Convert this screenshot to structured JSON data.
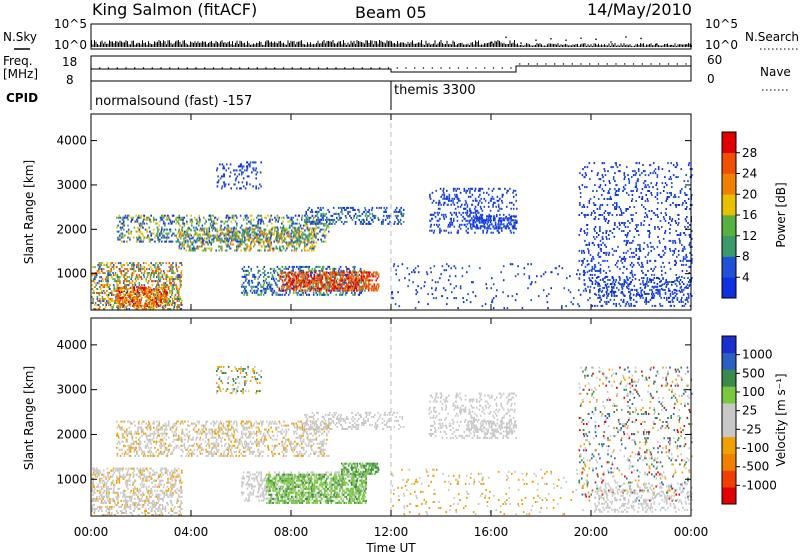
{
  "header": {
    "station": "King Salmon (fitACF)",
    "beam": "Beam 05",
    "date": "14/May/2010"
  },
  "summary_panels": {
    "nsky_label": "N.Sky",
    "nsky_ticks": [
      "10^5",
      "10^0"
    ],
    "nsearch_label": "N.Search",
    "nsearch_ticks": [
      "10^5",
      "10^0"
    ],
    "freq_label_line1": "Freq.",
    "freq_label_line2": "[MHz]",
    "freq_ticks": [
      "18",
      "8"
    ],
    "nave_label": "Nave",
    "nave_ticks": [
      "60",
      "0"
    ],
    "cpid_label": "CPID",
    "cpid_segments": [
      {
        "label": "normalsound (fast) -157",
        "start_hour": 0,
        "end_hour": 12
      },
      {
        "label": "themis 3300",
        "start_hour": 12,
        "end_hour": 24
      }
    ]
  },
  "colors": {
    "power_scale": [
      "#1030e0",
      "#2050d8",
      "#3a9a6a",
      "#58b040",
      "#e8c000",
      "#f08000",
      "#f05000",
      "#e00000"
    ],
    "velocity_scale": [
      "#1a2fd0",
      "#2a60c0",
      "#3a8a4a",
      "#7ac840",
      "#c8c8c8",
      "#c8c8c8",
      "#f0a000",
      "#f08000",
      "#f04000",
      "#e00000"
    ],
    "noon_line": "#b8b8b8"
  },
  "chart_data": [
    {
      "type": "heatmap",
      "panel": "power",
      "ylabel": "Slant Range [km]",
      "ylim": [
        180,
        4600
      ],
      "yticks": [
        1000,
        2000,
        3000,
        4000
      ],
      "xlim": [
        0,
        24
      ],
      "colorbar_label": "Power [dB]",
      "colorbar_ticks": [
        "4",
        "8",
        "12",
        "16",
        "20",
        "24",
        "28"
      ],
      "scatter_regions": [
        {
          "t0": 0.0,
          "t1": 3.6,
          "r0": 180,
          "r1": 1250,
          "density": 0.65,
          "levels": [
            1,
            2,
            3,
            4,
            5,
            6
          ]
        },
        {
          "t0": 1.0,
          "t1": 3.0,
          "r0": 250,
          "r1": 700,
          "density": 0.85,
          "levels": [
            4,
            5,
            6,
            7
          ]
        },
        {
          "t0": 1.0,
          "t1": 9.5,
          "r0": 1700,
          "r1": 2300,
          "density": 0.5,
          "levels": [
            0,
            1,
            2,
            3,
            4
          ]
        },
        {
          "t0": 3.5,
          "t1": 9.0,
          "r0": 1500,
          "r1": 2000,
          "density": 0.6,
          "levels": [
            1,
            2,
            3,
            4,
            5
          ]
        },
        {
          "t0": 6.0,
          "t1": 11.0,
          "r0": 500,
          "r1": 1150,
          "density": 0.55,
          "levels": [
            0,
            1,
            2,
            3
          ]
        },
        {
          "t0": 7.5,
          "t1": 11.5,
          "r0": 600,
          "r1": 1050,
          "density": 0.9,
          "levels": [
            5,
            6,
            7
          ]
        },
        {
          "t0": 5.0,
          "t1": 6.8,
          "r0": 2900,
          "r1": 3500,
          "density": 0.3,
          "levels": [
            0,
            1
          ]
        },
        {
          "t0": 8.5,
          "t1": 12.5,
          "r0": 2100,
          "r1": 2500,
          "density": 0.45,
          "levels": [
            0,
            1,
            2
          ]
        },
        {
          "t0": 13.5,
          "t1": 17.0,
          "r0": 1900,
          "r1": 2900,
          "density": 0.3,
          "levels": [
            0,
            1
          ]
        },
        {
          "t0": 15.0,
          "t1": 17.0,
          "r0": 2000,
          "r1": 2300,
          "density": 0.6,
          "levels": [
            0,
            1
          ]
        },
        {
          "t0": 19.5,
          "t1": 24.0,
          "r0": 500,
          "r1": 3500,
          "density": 0.18,
          "levels": [
            0,
            1
          ]
        },
        {
          "t0": 20.0,
          "t1": 24.0,
          "r0": 250,
          "r1": 900,
          "density": 0.35,
          "levels": [
            0,
            1
          ]
        },
        {
          "t0": 12.0,
          "t1": 20.0,
          "r0": 200,
          "r1": 1200,
          "density": 0.07,
          "levels": [
            0,
            1
          ]
        }
      ]
    },
    {
      "type": "heatmap",
      "panel": "velocity",
      "ylabel": "Slant Range [km]",
      "ylim": [
        180,
        4600
      ],
      "yticks": [
        1000,
        2000,
        3000,
        4000
      ],
      "xlim": [
        0,
        24
      ],
      "xticks": [
        "00:00",
        "04:00",
        "08:00",
        "12:00",
        "16:00",
        "20:00",
        "00:00"
      ],
      "xlabel": "Time UT",
      "colorbar_label": "Velocity [m s⁻¹]",
      "colorbar_ticks": [
        "1000",
        "500",
        "100",
        "25",
        "-25",
        "-100",
        "-500",
        "-1000"
      ],
      "scatter_regions": [
        {
          "t0": 0.0,
          "t1": 3.6,
          "r0": 180,
          "r1": 1250,
          "density": 0.6,
          "levels": [
            4,
            4,
            4,
            5,
            3
          ]
        },
        {
          "t0": 1.0,
          "t1": 9.5,
          "r0": 1500,
          "r1": 2300,
          "density": 0.5,
          "levels": [
            4,
            5,
            4,
            3
          ]
        },
        {
          "t0": 6.0,
          "t1": 11.0,
          "r0": 500,
          "r1": 1150,
          "density": 0.55,
          "levels": [
            4,
            5,
            4
          ]
        },
        {
          "t0": 7.0,
          "t1": 11.0,
          "r0": 450,
          "r1": 1100,
          "density": 0.85,
          "levels": [
            6,
            6,
            7,
            6
          ]
        },
        {
          "t0": 10.0,
          "t1": 11.5,
          "r0": 1100,
          "r1": 1350,
          "density": 0.8,
          "levels": [
            6,
            7
          ]
        },
        {
          "t0": 8.5,
          "t1": 12.5,
          "r0": 2100,
          "r1": 2500,
          "density": 0.45,
          "levels": [
            4,
            5
          ]
        },
        {
          "t0": 5.0,
          "t1": 6.8,
          "r0": 2900,
          "r1": 3500,
          "density": 0.25,
          "levels": [
            4,
            3,
            7
          ]
        },
        {
          "t0": 13.5,
          "t1": 17.0,
          "r0": 1900,
          "r1": 2900,
          "density": 0.3,
          "levels": [
            4,
            5
          ]
        },
        {
          "t0": 15.0,
          "t1": 17.0,
          "r0": 2000,
          "r1": 2300,
          "density": 0.6,
          "levels": [
            4
          ]
        },
        {
          "t0": 19.5,
          "t1": 24.0,
          "r0": 500,
          "r1": 3500,
          "density": 0.15,
          "levels": [
            4,
            5,
            3,
            0,
            7,
            8
          ]
        },
        {
          "t0": 20.0,
          "t1": 24.0,
          "r0": 250,
          "r1": 900,
          "density": 0.35,
          "levels": [
            4,
            5
          ]
        },
        {
          "t0": 12.0,
          "t1": 20.0,
          "r0": 200,
          "r1": 1200,
          "density": 0.07,
          "levels": [
            4,
            3
          ]
        }
      ]
    }
  ]
}
